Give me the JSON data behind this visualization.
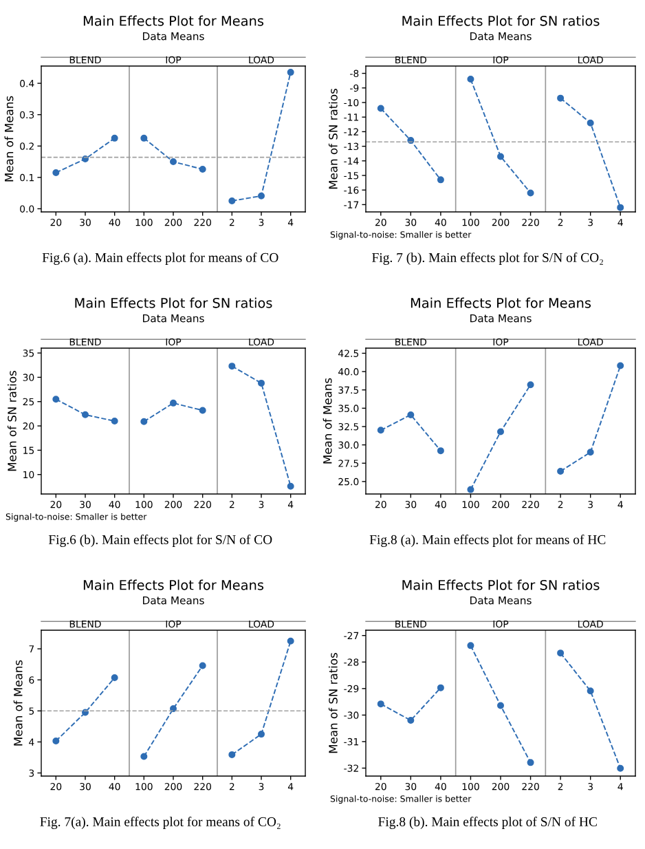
{
  "chart_data": [
    {
      "type": "line",
      "title": "Main Effects Plot for Means",
      "subtitle": "Data Means",
      "ylabel": "Mean of Means",
      "categories": [
        "20",
        "30",
        "40",
        "100",
        "200",
        "220",
        "2",
        "3",
        "4"
      ],
      "marker": "circle",
      "line_style": "dashed",
      "grid": false,
      "ylim": [
        -0.01,
        0.455
      ],
      "yticks": [
        {
          "value": 0.0,
          "label": "0.0"
        },
        0.1,
        0.2,
        0.3,
        0.4
      ],
      "series": [
        {
          "color": "#2e6db4",
          "values": [
            0.115,
            0.159,
            0.225,
            null,
            null,
            null,
            null,
            null,
            null
          ]
        },
        {
          "color": "#2e6db4",
          "values": [
            null,
            null,
            null,
            0.225,
            0.15,
            0.126,
            null,
            null,
            null
          ]
        },
        {
          "color": "#2e6db4",
          "values": [
            null,
            null,
            null,
            null,
            null,
            null,
            0.025,
            0.041,
            0.435
          ]
        }
      ],
      "ref_lines": [
        {
          "axis": "y",
          "value": 0.164,
          "color": "#a0a0a0",
          "line_style": "dashed"
        }
      ],
      "annotations": [
        "BLEND",
        "IOP",
        "LOAD",
        "Fig.6 (a). Main effects plot for means of CO"
      ]
    },
    {
      "type": "line",
      "title": "Main Effects Plot for SN ratios",
      "subtitle": "Data Means",
      "ylabel": "Mean of SN ratios",
      "categories": [
        "20",
        "30",
        "40",
        "100",
        "200",
        "220",
        "2",
        "3",
        "4"
      ],
      "marker": "circle",
      "line_style": "dashed",
      "grid": false,
      "ylim": [
        -17.5,
        -7.5
      ],
      "yticks": [
        -17,
        -16,
        -15,
        -14,
        -13,
        -12,
        -11,
        -10,
        -9,
        -8
      ],
      "series": [
        {
          "color": "#2e6db4",
          "values": [
            -10.4,
            -12.6,
            -15.3,
            null,
            null,
            null,
            null,
            null,
            null
          ]
        },
        {
          "color": "#2e6db4",
          "values": [
            null,
            null,
            null,
            -8.4,
            -13.7,
            -16.2,
            null,
            null,
            null
          ]
        },
        {
          "color": "#2e6db4",
          "values": [
            null,
            null,
            null,
            null,
            null,
            null,
            -9.7,
            -11.4,
            -17.2
          ]
        }
      ],
      "ref_lines": [
        {
          "axis": "y",
          "value": -12.7,
          "color": "#a0a0a0",
          "line_style": "dashed"
        }
      ],
      "annotations": [
        "BLEND",
        "IOP",
        "LOAD",
        "Signal-to-noise: Smaller is better",
        "Fig. 7 (b). Main effects plot for S/N of CO₂"
      ]
    },
    {
      "type": "line",
      "title": "Main Effects Plot for SN ratios",
      "subtitle": "Data Means",
      "ylabel": "Mean of SN ratios",
      "categories": [
        "20",
        "30",
        "40",
        "100",
        "200",
        "220",
        "2",
        "3",
        "4"
      ],
      "marker": "circle",
      "line_style": "dashed",
      "grid": false,
      "ylim": [
        6,
        36
      ],
      "yticks": [
        10,
        15,
        20,
        25,
        30,
        35
      ],
      "series": [
        {
          "color": "#2e6db4",
          "values": [
            25.5,
            22.3,
            21.0,
            null,
            null,
            null,
            null,
            null,
            null
          ]
        },
        {
          "color": "#2e6db4",
          "values": [
            null,
            null,
            null,
            20.9,
            24.7,
            23.2,
            null,
            null,
            null
          ]
        },
        {
          "color": "#2e6db4",
          "values": [
            null,
            null,
            null,
            null,
            null,
            null,
            32.3,
            28.8,
            7.6
          ]
        }
      ],
      "annotations": [
        "BLEND",
        "IOP",
        "LOAD",
        "Signal-to-noise: Smaller is better",
        "Fig.6 (b). Main effects plot for S/N of CO"
      ]
    },
    {
      "type": "line",
      "title": "Main Effects Plot for Means",
      "subtitle": "Data Means",
      "ylabel": "Mean of Means",
      "categories": [
        "20",
        "30",
        "40",
        "100",
        "200",
        "220",
        "2",
        "3",
        "4"
      ],
      "marker": "circle",
      "line_style": "dashed",
      "grid": false,
      "ylim": [
        23.3,
        43.2
      ],
      "yticks": [
        {
          "value": 25,
          "label": "25.0"
        },
        27.5,
        {
          "value": 30,
          "label": "30.0"
        },
        32.5,
        {
          "value": 35,
          "label": "35.0"
        },
        37.5,
        {
          "value": 40,
          "label": "40.0"
        },
        42.5
      ],
      "series": [
        {
          "color": "#2e6db4",
          "values": [
            32.0,
            34.1,
            29.2,
            null,
            null,
            null,
            null,
            null,
            null
          ]
        },
        {
          "color": "#2e6db4",
          "values": [
            null,
            null,
            null,
            23.9,
            31.8,
            38.2,
            null,
            null,
            null
          ]
        },
        {
          "color": "#2e6db4",
          "values": [
            null,
            null,
            null,
            null,
            null,
            null,
            26.4,
            29.0,
            40.8
          ]
        }
      ],
      "annotations": [
        "BLEND",
        "IOP",
        "LOAD",
        "Fig.8 (a). Main effects plot for means of HC"
      ]
    },
    {
      "type": "line",
      "title": "Main Effects Plot for Means",
      "subtitle": "Data Means",
      "ylabel": "Mean of Means",
      "categories": [
        "20",
        "30",
        "40",
        "100",
        "200",
        "220",
        "2",
        "3",
        "4"
      ],
      "marker": "circle",
      "line_style": "dashed",
      "grid": false,
      "ylim": [
        2.9,
        7.6
      ],
      "yticks": [
        3,
        4,
        5,
        6,
        7
      ],
      "series": [
        {
          "color": "#2e6db4",
          "values": [
            4.03,
            4.95,
            6.07,
            null,
            null,
            null,
            null,
            null,
            null
          ]
        },
        {
          "color": "#2e6db4",
          "values": [
            null,
            null,
            null,
            3.53,
            5.07,
            6.46,
            null,
            null,
            null
          ]
        },
        {
          "color": "#2e6db4",
          "values": [
            null,
            null,
            null,
            null,
            null,
            null,
            3.59,
            4.25,
            7.25
          ]
        }
      ],
      "ref_lines": [
        {
          "axis": "y",
          "value": 5.0,
          "color": "#a0a0a0",
          "line_style": "dashed"
        }
      ],
      "annotations": [
        "BLEND",
        "IOP",
        "LOAD",
        "Fig. 7(a). Main effects plot for means of CO₂"
      ]
    },
    {
      "type": "line",
      "title": "Main Effects Plot for SN ratios",
      "subtitle": "Data Means",
      "ylabel": "Mean of SN ratios",
      "categories": [
        "20",
        "30",
        "40",
        "100",
        "200",
        "220",
        "2",
        "3",
        "4"
      ],
      "marker": "circle",
      "line_style": "dashed",
      "grid": false,
      "ylim": [
        -32.3,
        -26.8
      ],
      "yticks": [
        -32,
        -31,
        -30,
        -29,
        -28,
        -27
      ],
      "series": [
        {
          "color": "#2e6db4",
          "values": [
            -29.58,
            -30.2,
            -28.97,
            null,
            null,
            null,
            null,
            null,
            null
          ]
        },
        {
          "color": "#2e6db4",
          "values": [
            null,
            null,
            null,
            -27.38,
            -29.64,
            -31.79,
            null,
            null,
            null
          ]
        },
        {
          "color": "#2e6db4",
          "values": [
            null,
            null,
            null,
            null,
            null,
            null,
            -27.66,
            -29.09,
            -32.01
          ]
        }
      ],
      "annotations": [
        "BLEND",
        "IOP",
        "LOAD",
        "Signal-to-noise: Smaller is better",
        "Fig.8 (b). Main effects plot of S/N of HC"
      ]
    }
  ]
}
